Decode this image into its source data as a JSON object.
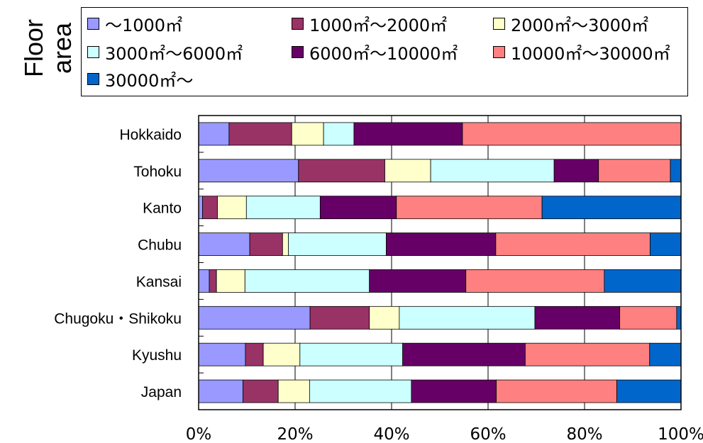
{
  "legend": {
    "title": "Floor area",
    "items": [
      {
        "label": "～1000㎡",
        "color": "#9999ff"
      },
      {
        "label": "1000㎡～2000㎡",
        "color": "#993366"
      },
      {
        "label": "2000㎡～3000㎡",
        "color": "#ffffcc"
      },
      {
        "label": "3000㎡～6000㎡",
        "color": "#ccffff"
      },
      {
        "label": "6000㎡～10000㎡",
        "color": "#660066"
      },
      {
        "label": "10000㎡～30000㎡",
        "color": "#ff8080"
      },
      {
        "label": "30000㎡～",
        "color": "#0066cc"
      }
    ]
  },
  "chart_data": {
    "type": "bar",
    "orientation": "horizontal",
    "stacked": true,
    "percent": true,
    "categories": [
      "Hokkaido",
      "Tohoku",
      "Kanto",
      "Chubu",
      "Kansai",
      "Chugoku・Shikoku",
      "Kyushu",
      "Japan"
    ],
    "series": [
      {
        "name": "～1000㎡",
        "color": "#9999ff",
        "values": [
          6.3,
          20.7,
          0.8,
          10.6,
          2.2,
          23.1,
          9.7,
          9.2
        ]
      },
      {
        "name": "1000㎡～2000㎡",
        "color": "#993366",
        "values": [
          13.0,
          17.9,
          3.1,
          6.8,
          1.5,
          12.3,
          3.7,
          7.3
        ]
      },
      {
        "name": "2000㎡～3000㎡",
        "color": "#ffffcc",
        "values": [
          6.6,
          9.5,
          6.0,
          1.2,
          5.9,
          6.2,
          7.6,
          6.5
        ]
      },
      {
        "name": "3000㎡～6000㎡",
        "color": "#ccffff",
        "values": [
          6.3,
          25.6,
          15.3,
          20.3,
          25.8,
          28.1,
          21.3,
          21.1
        ]
      },
      {
        "name": "6000㎡～10000㎡",
        "color": "#660066",
        "values": [
          22.5,
          9.2,
          15.8,
          22.7,
          20.0,
          17.6,
          25.4,
          17.6
        ]
      },
      {
        "name": "10000㎡～30000㎡",
        "color": "#ff8080",
        "values": [
          45.3,
          14.9,
          30.2,
          32.0,
          28.7,
          11.8,
          25.8,
          25.0
        ]
      },
      {
        "name": "30000㎡～",
        "color": "#0066cc",
        "values": [
          0,
          2.2,
          28.8,
          6.4,
          15.9,
          0.9,
          6.5,
          13.3
        ]
      }
    ],
    "xlim": [
      0,
      100
    ],
    "xticks": [
      "0%",
      "20%",
      "40%",
      "60%",
      "80%",
      "100%"
    ],
    "grid": true,
    "legend_position": "top"
  }
}
